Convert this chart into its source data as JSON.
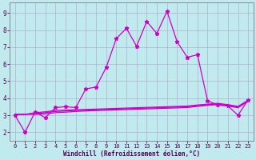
{
  "background_color": "#c0eaed",
  "grid_color": "#b0b0cc",
  "line_color": "#cc00cc",
  "xlim": [
    -0.5,
    23.5
  ],
  "ylim": [
    1.5,
    9.6
  ],
  "xticks": [
    0,
    1,
    2,
    3,
    4,
    5,
    6,
    7,
    8,
    9,
    10,
    11,
    12,
    13,
    14,
    15,
    16,
    17,
    18,
    19,
    20,
    21,
    22,
    23
  ],
  "yticks": [
    2,
    3,
    4,
    5,
    6,
    7,
    8,
    9
  ],
  "xlabel": "Windchill (Refroidissement éolien,°C)",
  "spiky_x": [
    0,
    1,
    2,
    3,
    4,
    5,
    6,
    7,
    8,
    9,
    10,
    11,
    12,
    13,
    14,
    15,
    16,
    17,
    18,
    19,
    20,
    21,
    22,
    23
  ],
  "spiky_y": [
    3.0,
    2.0,
    3.2,
    2.85,
    3.45,
    3.5,
    3.45,
    4.55,
    4.65,
    5.8,
    7.5,
    8.1,
    7.05,
    8.5,
    7.8,
    9.1,
    7.3,
    6.4,
    6.55,
    3.85,
    3.6,
    3.55,
    3.0,
    3.9
  ],
  "flat_lines": [
    [
      3.05,
      3.05,
      3.15,
      3.2,
      3.28,
      3.3,
      3.32,
      3.34,
      3.36,
      3.38,
      3.4,
      3.42,
      3.44,
      3.46,
      3.48,
      3.5,
      3.52,
      3.54,
      3.6,
      3.65,
      3.7,
      3.62,
      3.52,
      3.88
    ],
    [
      3.05,
      3.05,
      3.1,
      3.15,
      3.22,
      3.25,
      3.28,
      3.3,
      3.32,
      3.34,
      3.36,
      3.38,
      3.4,
      3.42,
      3.44,
      3.46,
      3.48,
      3.5,
      3.56,
      3.62,
      3.66,
      3.58,
      3.48,
      3.86
    ],
    [
      3.05,
      3.05,
      3.05,
      3.08,
      3.15,
      3.18,
      3.22,
      3.25,
      3.27,
      3.29,
      3.31,
      3.33,
      3.35,
      3.37,
      3.39,
      3.41,
      3.43,
      3.45,
      3.52,
      3.58,
      3.62,
      3.54,
      3.44,
      3.82
    ]
  ],
  "tick_color": "#550055",
  "label_fontsize": 5.5,
  "tick_fontsize": 5.0,
  "linewidth": 0.9,
  "marker_size": 3.5
}
